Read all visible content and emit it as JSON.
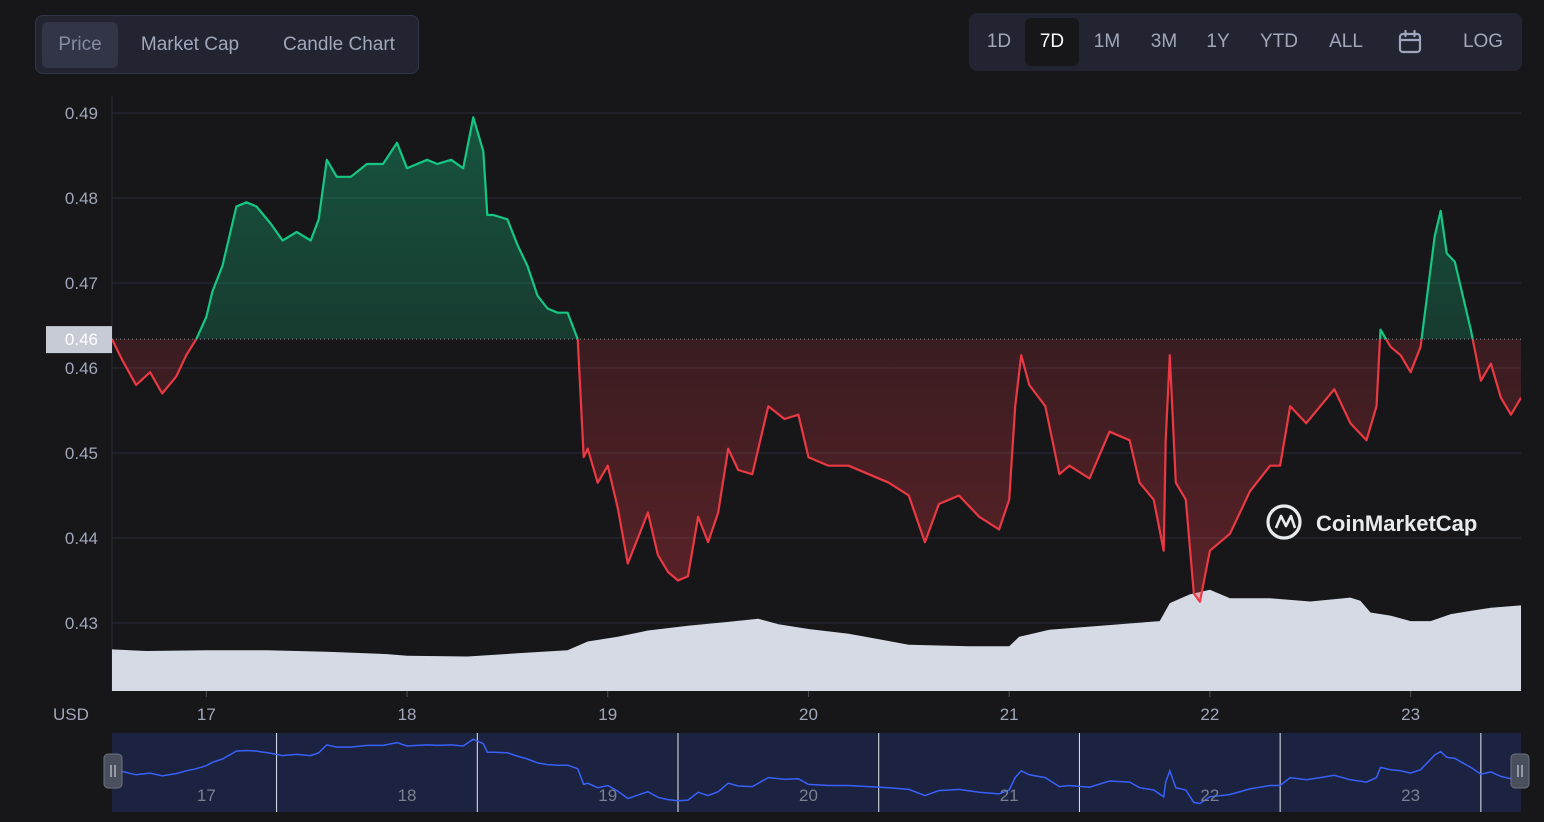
{
  "range_tabs": {
    "items": [
      {
        "label": "Price",
        "active": true
      },
      {
        "label": "Market Cap",
        "active": false
      },
      {
        "label": "Candle Chart",
        "active": false
      }
    ]
  },
  "period_tabs": {
    "items": [
      {
        "label": "1D",
        "active": false
      },
      {
        "label": "7D",
        "active": true
      },
      {
        "label": "1M",
        "active": false
      },
      {
        "label": "3M",
        "active": false
      },
      {
        "label": "1Y",
        "active": false
      },
      {
        "label": "YTD",
        "active": false
      },
      {
        "label": "ALL",
        "active": false
      }
    ],
    "calendar_icon": "calendar-icon",
    "log_label": "LOG"
  },
  "watermark": {
    "text": "CoinMarketCap",
    "icon": "coinmarketcap-logo-icon"
  },
  "colors": {
    "up": "#16c784",
    "down": "#ea3943",
    "volume": "#d6dae5",
    "navigator_line": "#3861fb",
    "navigator_bg": "#1c2340",
    "current_price_tag": "#c7cbd6"
  },
  "chart_data": {
    "type": "line",
    "xlabel": "USD",
    "ylabel": "",
    "x_ticks": [
      "17",
      "18",
      "19",
      "20",
      "21",
      "22",
      "23"
    ],
    "y_ticks": [
      0.43,
      0.44,
      0.45,
      0.46,
      0.47,
      0.48,
      0.49
    ],
    "y_tick_labels": [
      "0.43",
      "0.44",
      "0.45",
      "0.46",
      "0.47",
      "0.48",
      "0.49"
    ],
    "ylim": [
      0.422,
      0.492
    ],
    "xlim": [
      16.53,
      23.55
    ],
    "baseline_price": 0.4634,
    "current_price_label": "0.46",
    "grid": true,
    "series": [
      {
        "name": "",
        "x": [
          16.53,
          16.58,
          16.65,
          16.72,
          16.78,
          16.85,
          16.9,
          16.95,
          17.0,
          17.03,
          17.08,
          17.15,
          17.2,
          17.25,
          17.32,
          17.38,
          17.45,
          17.52,
          17.56,
          17.6,
          17.65,
          17.72,
          17.8,
          17.88,
          17.95,
          18.0,
          18.05,
          18.1,
          18.15,
          18.22,
          18.28,
          18.33,
          18.38,
          18.4,
          18.43,
          18.5,
          18.55,
          18.6,
          18.65,
          18.7,
          18.75,
          18.8,
          18.85,
          18.88,
          18.9,
          18.95,
          19.0,
          19.05,
          19.1,
          19.15,
          19.2,
          19.25,
          19.3,
          19.35,
          19.4,
          19.45,
          19.5,
          19.55,
          19.6,
          19.65,
          19.72,
          19.8,
          19.88,
          19.95,
          20.0,
          20.1,
          20.2,
          20.3,
          20.4,
          20.5,
          20.58,
          20.65,
          20.75,
          20.85,
          20.95,
          21.0,
          21.03,
          21.06,
          21.1,
          21.18,
          21.25,
          21.3,
          21.4,
          21.5,
          21.6,
          21.65,
          21.72,
          21.77,
          21.78,
          21.8,
          21.83,
          21.88,
          21.92,
          21.95,
          22.0,
          22.1,
          22.2,
          22.3,
          22.35,
          22.4,
          22.48,
          22.55,
          22.62,
          22.7,
          22.78,
          22.83,
          22.85,
          22.9,
          22.95,
          23.0,
          23.05,
          23.12,
          23.15,
          23.18,
          23.22,
          23.25,
          23.3,
          23.35,
          23.4,
          23.45,
          23.5,
          23.55
        ],
        "y": [
          0.4634,
          0.461,
          0.458,
          0.4595,
          0.457,
          0.459,
          0.4615,
          0.4634,
          0.466,
          0.469,
          0.472,
          0.479,
          0.4795,
          0.479,
          0.477,
          0.475,
          0.476,
          0.475,
          0.4775,
          0.4845,
          0.4825,
          0.4825,
          0.484,
          0.484,
          0.4865,
          0.4835,
          0.484,
          0.4845,
          0.484,
          0.4845,
          0.4835,
          0.4895,
          0.4855,
          0.478,
          0.478,
          0.4775,
          0.4745,
          0.472,
          0.4685,
          0.467,
          0.4665,
          0.4665,
          0.4634,
          0.4495,
          0.4505,
          0.4465,
          0.4485,
          0.4435,
          0.437,
          0.44,
          0.443,
          0.438,
          0.436,
          0.435,
          0.4355,
          0.4425,
          0.4395,
          0.443,
          0.4505,
          0.448,
          0.4475,
          0.4555,
          0.454,
          0.4545,
          0.4495,
          0.4485,
          0.4485,
          0.4475,
          0.4465,
          0.445,
          0.4395,
          0.444,
          0.445,
          0.4425,
          0.441,
          0.4445,
          0.4555,
          0.4615,
          0.458,
          0.4555,
          0.4475,
          0.4485,
          0.447,
          0.4525,
          0.4515,
          0.4465,
          0.4445,
          0.4385,
          0.4515,
          0.4615,
          0.4465,
          0.4445,
          0.4335,
          0.4325,
          0.4385,
          0.4405,
          0.4455,
          0.4485,
          0.4485,
          0.4555,
          0.4535,
          0.4555,
          0.4575,
          0.4535,
          0.4515,
          0.4555,
          0.4645,
          0.4625,
          0.4615,
          0.4595,
          0.4625,
          0.4755,
          0.4785,
          0.4735,
          0.4725,
          0.4695,
          0.4645,
          0.4585,
          0.4605,
          0.4565,
          0.4545,
          0.4565
        ]
      }
    ],
    "volume": {
      "x": [
        16.53,
        16.7,
        17.0,
        17.3,
        17.6,
        17.9,
        18.0,
        18.3,
        18.55,
        18.8,
        18.9,
        19.05,
        19.2,
        19.4,
        19.6,
        19.75,
        19.85,
        20.0,
        20.2,
        20.5,
        20.8,
        21.0,
        21.05,
        21.2,
        21.4,
        21.6,
        21.75,
        21.8,
        21.9,
        22.0,
        22.1,
        22.3,
        22.5,
        22.7,
        22.75,
        22.8,
        22.9,
        23.0,
        23.1,
        23.2,
        23.3,
        23.4,
        23.55
      ],
      "y": [
        0.53,
        0.51,
        0.52,
        0.52,
        0.5,
        0.47,
        0.45,
        0.44,
        0.48,
        0.52,
        0.63,
        0.69,
        0.77,
        0.83,
        0.88,
        0.92,
        0.85,
        0.79,
        0.73,
        0.59,
        0.57,
        0.57,
        0.69,
        0.78,
        0.82,
        0.86,
        0.89,
        1.12,
        1.23,
        1.29,
        1.18,
        1.18,
        1.14,
        1.19,
        1.15,
        1.0,
        0.96,
        0.89,
        0.89,
        0.98,
        1.02,
        1.06,
        1.09
      ]
    },
    "navigator": {
      "x_ticks": [
        "17",
        "18",
        "19",
        "20",
        "21",
        "22",
        "23"
      ]
    }
  }
}
